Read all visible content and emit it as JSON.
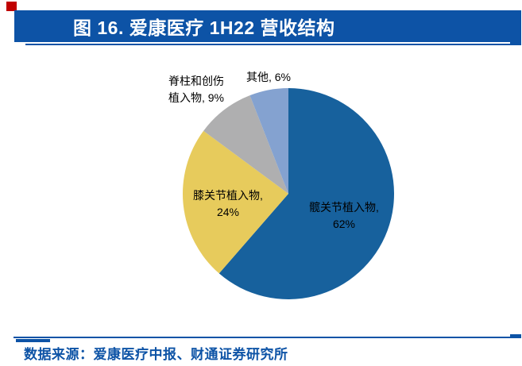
{
  "theme": {
    "accent_blue": "#0D53A6",
    "marker_red": "#C00000",
    "text_black": "#000000"
  },
  "header": {
    "title": "图 16. 爱康医疗 1H22 营收结构"
  },
  "chart_data": {
    "type": "pie",
    "title": "爱康医疗 1H22 营收结构",
    "legend_position": "none",
    "data_labels": "category-name-with-percent",
    "start_angle_deg": 0,
    "direction": "clockwise",
    "slices": [
      {
        "label": "髋关节植入物",
        "value": 62,
        "color": "#17619D",
        "label_lines": [
          "髋关节植入物,",
          "62%"
        ]
      },
      {
        "label": "膝关节植入物",
        "value": 24,
        "color": "#E7CB5C",
        "label_lines": [
          "膝关节植入物,",
          "24%"
        ]
      },
      {
        "label": "脊柱和创伤植入物",
        "value": 9,
        "color": "#AFAFB0",
        "label_lines": [
          "脊柱和创伤",
          "植入物, 9%"
        ]
      },
      {
        "label": "其他",
        "value": 6,
        "color": "#84A2D0",
        "label_lines": [
          "其他, 6%",
          ""
        ]
      }
    ]
  },
  "footer": {
    "source": "数据来源：爱康医疗中报、财通证券研究所"
  }
}
